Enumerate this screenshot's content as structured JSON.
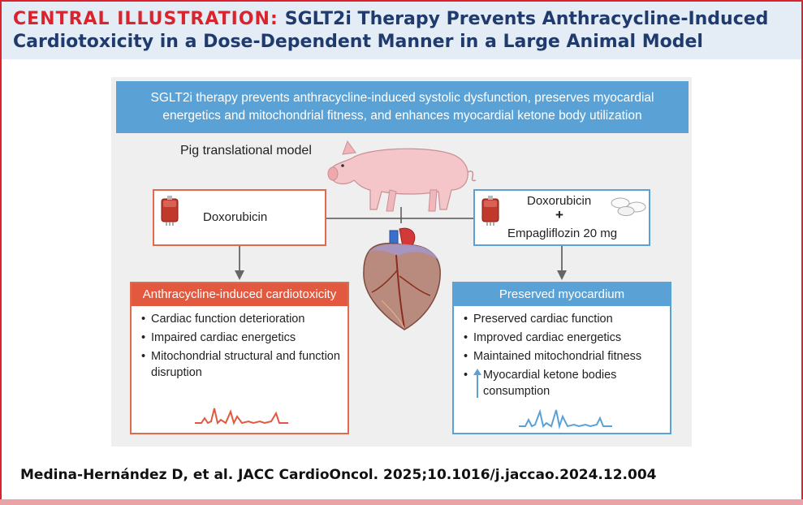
{
  "header": {
    "lead": "CENTRAL ILLUSTRATION:",
    "title_line1": "SGLT2i Therapy Prevents Anthracycline-Induced",
    "title_line2": "Cardiotoxicity in a Dose-Dependent Manner in a Large Animal Model"
  },
  "banner": {
    "line1": "SGLT2i therapy prevents anthracycline-induced systolic dysfunction, preserves myocardial",
    "line2": "energetics and mitochondrial fitness, and enhances myocardial ketone body utilization"
  },
  "model": {
    "label": "Pig translational model"
  },
  "left": {
    "drug": "Doxorubicin",
    "outcome_title": "Anthracycline-induced cardiotoxicity",
    "bullets": [
      "Cardiac function deterioration",
      "Impaired cardiac energetics",
      "Mitochondrial structural and function disruption"
    ]
  },
  "right": {
    "drug1": "Doxorubicin",
    "plus": "+",
    "drug2": "Empagliflozin 20 mg",
    "outcome_title": "Preserved myocardium",
    "bullets": [
      "Preserved cardiac function",
      "Improved cardiac energetics",
      "Maintained mitochondrial fitness",
      "Myocardial ketone bodies consumption"
    ]
  },
  "citation": "Medina-Hernández D, et al. JACC CardioOncol. 2025;10.1016/j.jaccao.2024.12.004",
  "colors": {
    "accent_red": "#d9232d",
    "title_blue": "#1f3b6e",
    "banner_blue": "#5aa2d6",
    "cardio_red": "#e2593f"
  }
}
